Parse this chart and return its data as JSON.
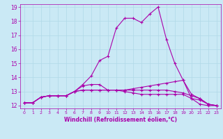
{
  "xlabel": "Windchill (Refroidissement éolien,°C)",
  "xlim": [
    -0.5,
    23.5
  ],
  "ylim": [
    11.8,
    19.2
  ],
  "yticks": [
    12,
    13,
    14,
    15,
    16,
    17,
    18,
    19
  ],
  "xticks": [
    0,
    1,
    2,
    3,
    4,
    5,
    6,
    7,
    8,
    9,
    10,
    11,
    12,
    13,
    14,
    15,
    16,
    17,
    18,
    19,
    20,
    21,
    22,
    23
  ],
  "background_color": "#cae9f5",
  "grid_color": "#b0d8e8",
  "line_color": "#aa00aa",
  "lines": [
    [
      12.2,
      12.2,
      12.6,
      12.7,
      12.7,
      12.7,
      13.0,
      13.5,
      14.1,
      15.2,
      15.5,
      17.5,
      18.2,
      18.2,
      17.9,
      18.5,
      19.0,
      16.7,
      15.0,
      13.8,
      12.5,
      12.1,
      12.0,
      12.0
    ],
    [
      12.2,
      12.2,
      12.6,
      12.7,
      12.7,
      12.7,
      13.0,
      13.4,
      13.5,
      13.5,
      13.1,
      13.1,
      13.1,
      13.2,
      13.3,
      13.4,
      13.5,
      13.6,
      13.7,
      13.8,
      12.8,
      12.5,
      12.1,
      12.0
    ],
    [
      12.2,
      12.2,
      12.6,
      12.7,
      12.7,
      12.7,
      13.0,
      13.1,
      13.1,
      13.1,
      13.1,
      13.1,
      13.1,
      13.1,
      13.1,
      13.1,
      13.1,
      13.1,
      13.0,
      12.9,
      12.7,
      12.5,
      12.1,
      12.0
    ],
    [
      12.2,
      12.2,
      12.6,
      12.7,
      12.7,
      12.7,
      13.0,
      13.1,
      13.1,
      13.1,
      13.1,
      13.1,
      13.0,
      12.9,
      12.8,
      12.8,
      12.8,
      12.8,
      12.8,
      12.8,
      12.5,
      12.4,
      12.1,
      12.0
    ]
  ],
  "xlabel_fontsize": 5.5,
  "tick_fontsize": 4.5,
  "ytick_fontsize": 5.5,
  "linewidth": 0.8,
  "markersize": 2.5
}
